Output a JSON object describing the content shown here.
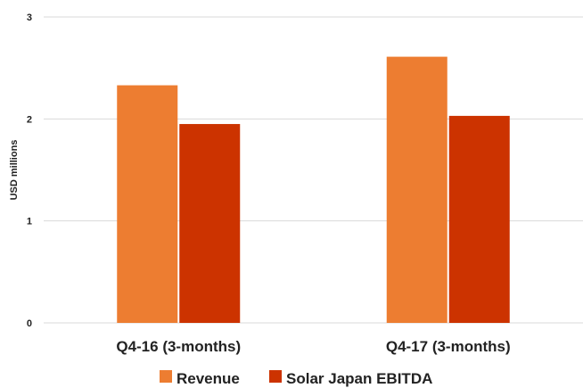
{
  "chart_data": {
    "type": "bar",
    "title": "",
    "xlabel": "",
    "ylabel": "USD millions",
    "ylim": [
      0,
      3
    ],
    "yticks": [
      0,
      1,
      2,
      3
    ],
    "categories": [
      "Q4-16 (3-months)",
      "Q4-17 (3-months)"
    ],
    "series": [
      {
        "name": "Revenue",
        "values": [
          2.33,
          2.61
        ],
        "color": "#ed7d31"
      },
      {
        "name": "Solar Japan EBITDA",
        "values": [
          1.95,
          2.03
        ],
        "color": "#cc3300"
      }
    ],
    "grid": true,
    "gridline_color": "#d9d9d9",
    "legend_position": "bottom"
  }
}
